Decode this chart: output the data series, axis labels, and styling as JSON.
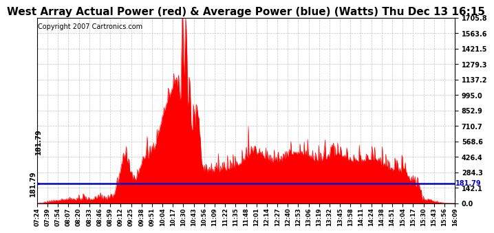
{
  "title": "West Array Actual Power (red) & Average Power (blue) (Watts) Thu Dec 13 16:15",
  "copyright": "Copyright 2007 Cartronics.com",
  "avg_power": 181.79,
  "y_max": 1705.8,
  "y_ticks": [
    0.0,
    142.1,
    284.3,
    426.4,
    568.6,
    710.7,
    852.9,
    995.0,
    1137.2,
    1279.3,
    1421.5,
    1563.6,
    1705.8
  ],
  "x_labels": [
    "07:24",
    "07:39",
    "07:54",
    "08:07",
    "08:20",
    "08:33",
    "08:46",
    "08:59",
    "09:12",
    "09:25",
    "09:38",
    "09:51",
    "10:04",
    "10:17",
    "10:30",
    "10:43",
    "10:56",
    "11:09",
    "11:22",
    "11:35",
    "11:48",
    "12:01",
    "12:14",
    "12:27",
    "12:40",
    "12:53",
    "13:06",
    "13:19",
    "13:32",
    "13:45",
    "13:58",
    "14:11",
    "14:24",
    "14:38",
    "14:51",
    "15:04",
    "15:17",
    "15:30",
    "15:43",
    "15:56",
    "16:09"
  ],
  "bg_color": "#ffffff",
  "grid_color": "#bbbbbb",
  "red_color": "#ff0000",
  "blue_color": "#0000cc",
  "title_fontsize": 11,
  "copyright_fontsize": 7
}
